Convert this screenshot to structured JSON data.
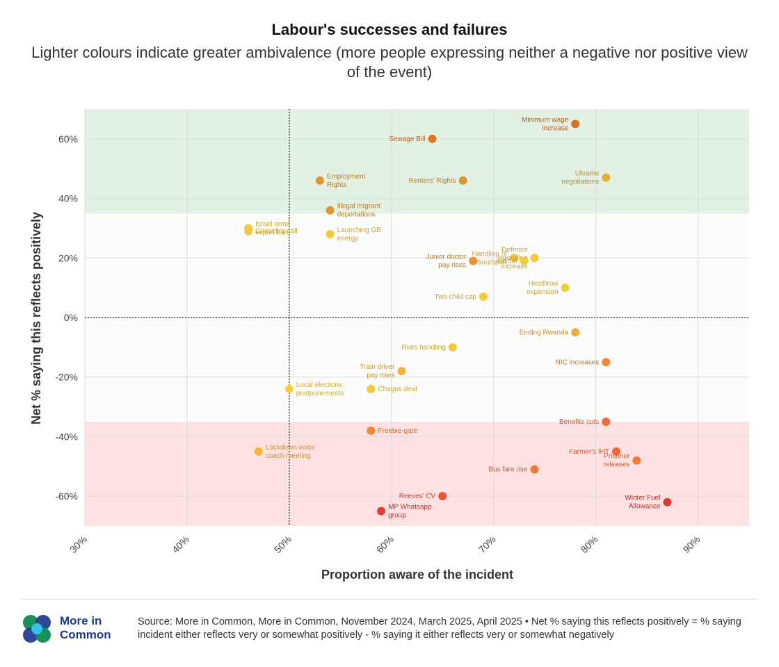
{
  "title": "Labour's successes and failures",
  "subtitle": "Lighter colours indicate greater ambivalence (more people expressing neither a negative nor positive view of the event)",
  "footer": {
    "logo_line1": "More in",
    "logo_line2": "Common",
    "source": "Source: More in Common, More in Common, November 2024, March 2025, April 2025 • Net % saying this reflects positively = % saying incident either reflects very or somewhat positively - % saying it either reflects very or somewhat negatively"
  },
  "colors": {
    "positive_band": "#e3f0e4",
    "negative_band": "#fde1e3",
    "neutral_band": "#fcfcfa",
    "grid": "#dcdcdc",
    "logo_blue": "#1b3a8c"
  },
  "chart_data": {
    "type": "scatter",
    "xlabel": "Proportion aware of the incident",
    "ylabel": "Net % saying this reflects positively",
    "xlim": [
      30,
      95
    ],
    "ylim": [
      -70,
      70
    ],
    "x_ticks": [
      "30%",
      "40%",
      "50%",
      "60%",
      "70%",
      "80%",
      "90%"
    ],
    "y_ticks": [
      "60%",
      "40%",
      "20%",
      "0%",
      "-20%",
      "-40%",
      "-60%"
    ],
    "reference_lines": {
      "x": 50,
      "y": 0
    },
    "bands": [
      {
        "from": 35,
        "to": 70,
        "meaning": "positive"
      },
      {
        "from": -35,
        "to": 35,
        "meaning": "neutral"
      },
      {
        "from": -70,
        "to": -35,
        "meaning": "negative"
      }
    ],
    "grid": true,
    "points": [
      {
        "label": "Minimum wage increase",
        "x": 78,
        "y": 65,
        "color": "#d86f24",
        "side": "left"
      },
      {
        "label": "Sewage Bill",
        "x": 64,
        "y": 60,
        "color": "#d9772a",
        "side": "left"
      },
      {
        "label": "Ukraine negotiations",
        "x": 81,
        "y": 47,
        "color": "#e6ae37",
        "side": "left"
      },
      {
        "label": "Employment Rights",
        "x": 53,
        "y": 46,
        "color": "#dd9830",
        "side": "right"
      },
      {
        "label": "Renters' Rights",
        "x": 67,
        "y": 46,
        "color": "#dd9830",
        "side": "left"
      },
      {
        "label": "Illegal migrant deportations",
        "x": 54,
        "y": 36,
        "color": "#dd9830",
        "side": "right"
      },
      {
        "label": "Israel arms export ban",
        "x": 46,
        "y": 30,
        "color": "#f5c93e",
        "side": "right"
      },
      {
        "label": "Ceasefire call",
        "x": 46,
        "y": 29,
        "color": "#f5c93e",
        "side": "right"
      },
      {
        "label": "Launching GB energy",
        "x": 54,
        "y": 28,
        "color": "#f5c93e",
        "side": "right"
      },
      {
        "label": "Junior doctor pay rises",
        "x": 68,
        "y": 19,
        "color": "#e8942f",
        "side": "left"
      },
      {
        "label": "Handling of Southport",
        "x": 72,
        "y": 20,
        "color": "#f5c93e",
        "side": "left"
      },
      {
        "label": "Defence spending increase",
        "x": 74,
        "y": 20,
        "color": "#f5c93e",
        "side": "left"
      },
      {
        "label": "Aid cut",
        "x": 73,
        "y": 19,
        "color": "#f5c93e",
        "side": "left"
      },
      {
        "label": "Heathrow expansion",
        "x": 77,
        "y": 10,
        "color": "#f5c93e",
        "side": "left"
      },
      {
        "label": "Two child cap",
        "x": 69,
        "y": 7,
        "color": "#f5c93e",
        "side": "left"
      },
      {
        "label": "Ending Rwanda",
        "x": 78,
        "y": -5,
        "color": "#f2a93b",
        "side": "left"
      },
      {
        "label": "Riots handling",
        "x": 66,
        "y": -10,
        "color": "#f5c93e",
        "side": "left"
      },
      {
        "label": "NIC increases",
        "x": 81,
        "y": -15,
        "color": "#f08a35",
        "side": "left"
      },
      {
        "label": "Train driver pay rises",
        "x": 61,
        "y": -18,
        "color": "#f2b43b",
        "side": "left"
      },
      {
        "label": "Local elections postponements",
        "x": 50,
        "y": -24,
        "color": "#f7d23e",
        "side": "right"
      },
      {
        "label": "Chagos deal",
        "x": 58,
        "y": -24,
        "color": "#f5c93e",
        "side": "right"
      },
      {
        "label": "Benefits cuts",
        "x": 81,
        "y": -35,
        "color": "#ef6a3a",
        "side": "left"
      },
      {
        "label": "Freebie-gate",
        "x": 58,
        "y": -38,
        "color": "#f2883a",
        "side": "right"
      },
      {
        "label": "Lockdown voice coach meeting",
        "x": 47,
        "y": -45,
        "color": "#f2b43b",
        "side": "right"
      },
      {
        "label": "Farmer's IHT",
        "x": 82,
        "y": -45,
        "color": "#ef6a3a",
        "side": "left"
      },
      {
        "label": "Prisoner releases",
        "x": 84,
        "y": -48,
        "color": "#ef7a3a",
        "side": "left"
      },
      {
        "label": "Bus fare rise",
        "x": 74,
        "y": -51,
        "color": "#ef7a3a",
        "side": "left"
      },
      {
        "label": "Reeves' CV",
        "x": 65,
        "y": -60,
        "color": "#e9573a",
        "side": "left"
      },
      {
        "label": "Winter Fuel Allowance",
        "x": 87,
        "y": -62,
        "color": "#d93a2e",
        "side": "left"
      },
      {
        "label": "MP Whatsapp group",
        "x": 59,
        "y": -65,
        "color": "#e0402f",
        "side": "right"
      }
    ]
  }
}
